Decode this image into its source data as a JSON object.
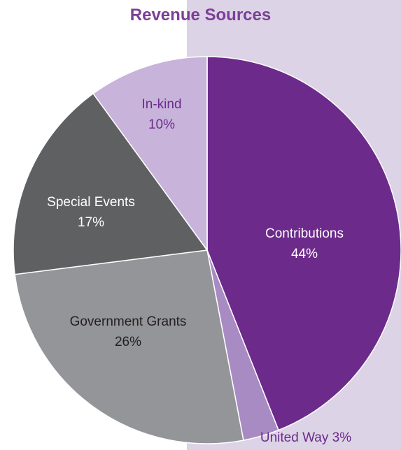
{
  "chart_data": {
    "type": "pie",
    "title": "Revenue Sources",
    "slices": [
      {
        "name": "Contributions",
        "value": 44,
        "label_pct": "44%",
        "color": "#6c2a8b",
        "text_color": "#ffffff"
      },
      {
        "name": "United Way",
        "value": 3,
        "label_pct": "3%",
        "color": "#a98bc3",
        "text_color": "#6c2a8b"
      },
      {
        "name": "Government Grants",
        "value": 26,
        "label_pct": "26%",
        "color": "#939598",
        "text_color": "#231f20"
      },
      {
        "name": "Special Events",
        "value": 17,
        "label_pct": "17%",
        "color": "#5f6062",
        "text_color": "#ffffff"
      },
      {
        "name": "In-kind",
        "value": 10,
        "label_pct": "10%",
        "color": "#c8b4db",
        "text_color": "#6c2a8b"
      }
    ]
  },
  "colors": {
    "title": "#7b3f98",
    "background_panel": "#ddd3e6",
    "slice_border": "#ffffff"
  }
}
